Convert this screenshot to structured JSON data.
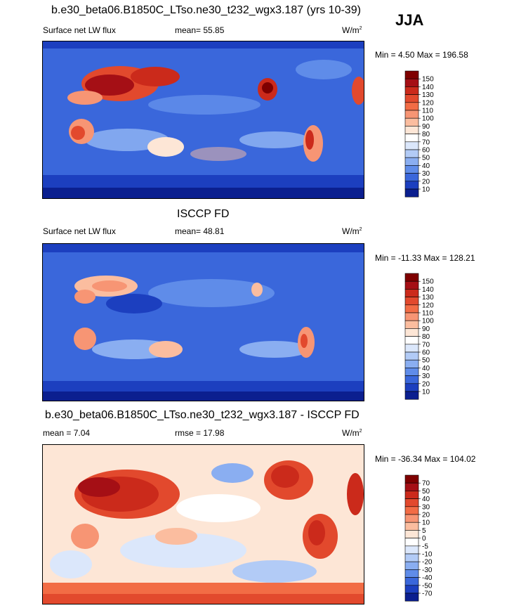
{
  "season": "JJA",
  "panels": [
    {
      "title": "b.e30_beta06.B1850C_LTso.ne30_t232_wgx3.187 (yrs 10-39)",
      "left_label": "Surface net LW flux",
      "center_label": "mean=  55.85",
      "units": "W/m",
      "units_sup": "2",
      "minmax": "Min =   4.50 Max = 196.58",
      "colorbar": {
        "levels": [
          "150",
          "140",
          "130",
          "120",
          "110",
          "100",
          "90",
          "80",
          "70",
          "60",
          "50",
          "40",
          "30",
          "20",
          "10"
        ],
        "colors": [
          "#7f0000",
          "#a50f15",
          "#cb2a1b",
          "#e2492d",
          "#f26c45",
          "#f79574",
          "#fbbd9f",
          "#fde6d6",
          "#ffffff",
          "#dbe7fb",
          "#b2cbf6",
          "#8aaef1",
          "#5f8ce9",
          "#3a67db",
          "#1c3fbf",
          "#0b1f8f"
        ]
      },
      "chart_data": {
        "type": "heatmap",
        "variable": "Surface net LW flux",
        "units": "W/m2",
        "mean": 55.85,
        "min": 4.5,
        "max": 196.58,
        "contour_levels": [
          10,
          20,
          30,
          40,
          50,
          60,
          70,
          80,
          90,
          100,
          110,
          120,
          130,
          140,
          150
        ]
      }
    },
    {
      "title": "ISCCP FD",
      "left_label": "Surface net LW flux",
      "center_label": "mean=  48.81",
      "units": "W/m",
      "units_sup": "2",
      "minmax": "Min = -11.33 Max = 128.21",
      "colorbar": {
        "levels": [
          "150",
          "140",
          "130",
          "120",
          "110",
          "100",
          "90",
          "80",
          "70",
          "60",
          "50",
          "40",
          "30",
          "20",
          "10"
        ],
        "colors": [
          "#7f0000",
          "#a50f15",
          "#cb2a1b",
          "#e2492d",
          "#f26c45",
          "#f79574",
          "#fbbd9f",
          "#fde6d6",
          "#ffffff",
          "#dbe7fb",
          "#b2cbf6",
          "#8aaef1",
          "#5f8ce9",
          "#3a67db",
          "#1c3fbf",
          "#0b1f8f"
        ]
      },
      "chart_data": {
        "type": "heatmap",
        "variable": "Surface net LW flux",
        "units": "W/m2",
        "mean": 48.81,
        "min": -11.33,
        "max": 128.21,
        "contour_levels": [
          10,
          20,
          30,
          40,
          50,
          60,
          70,
          80,
          90,
          100,
          110,
          120,
          130,
          140,
          150
        ]
      }
    },
    {
      "title": "b.e30_beta06.B1850C_LTso.ne30_t232_wgx3.187 - ISCCP FD",
      "left_label": "mean =   7.04",
      "center_label": "rmse =  17.98",
      "units": "W/m",
      "units_sup": "2",
      "minmax": "Min = -36.34 Max = 104.02",
      "colorbar": {
        "levels": [
          "70",
          "50",
          "40",
          "30",
          "20",
          "10",
          "5",
          "0",
          "-5",
          "-10",
          "-20",
          "-30",
          "-40",
          "-50",
          "-70"
        ],
        "colors": [
          "#7f0000",
          "#a50f15",
          "#cb2a1b",
          "#e2492d",
          "#f26c45",
          "#f79574",
          "#fbbd9f",
          "#fde6d6",
          "#ffffff",
          "#dbe7fb",
          "#b2cbf6",
          "#8aaef1",
          "#5f8ce9",
          "#3a67db",
          "#1c3fbf",
          "#0b1f8f"
        ]
      },
      "chart_data": {
        "type": "heatmap",
        "variable": "difference",
        "units": "W/m2",
        "mean": 7.04,
        "rmse": 17.98,
        "min": -36.34,
        "max": 104.02,
        "contour_levels": [
          -70,
          -50,
          -40,
          -30,
          -20,
          -10,
          -5,
          0,
          5,
          10,
          20,
          30,
          40,
          50,
          70
        ]
      }
    }
  ]
}
